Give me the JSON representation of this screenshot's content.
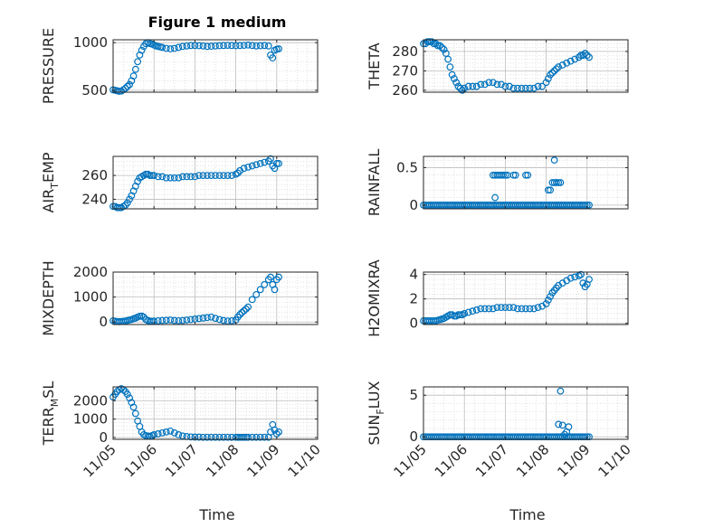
{
  "figure_title": "Figure 1 medium",
  "xlabel": "Time",
  "marker_color": "#0072BD",
  "chart_data": [
    {
      "type": "scatter",
      "ylabel_parts": [
        {
          "t": "PRESSURE"
        }
      ],
      "ylim": [
        480,
        1030
      ],
      "yticks": [
        {
          "v": 500,
          "label": "500"
        },
        {
          "v": 1000,
          "label": "1000"
        }
      ],
      "x": [
        0.0,
        0.05,
        0.1,
        0.15,
        0.2,
        0.25,
        0.3,
        0.35,
        0.4,
        0.45,
        0.5,
        0.55,
        0.6,
        0.65,
        0.7,
        0.75,
        0.8,
        0.85,
        0.9,
        0.95,
        1.0,
        1.05,
        1.1,
        1.15,
        1.2,
        1.3,
        1.4,
        1.5,
        1.6,
        1.7,
        1.8,
        1.9,
        2.0,
        2.1,
        2.2,
        2.3,
        2.4,
        2.5,
        2.6,
        2.7,
        2.8,
        2.9,
        3.0,
        3.1,
        3.2,
        3.3,
        3.4,
        3.5,
        3.6,
        3.7,
        3.8,
        3.85,
        3.9,
        3.95,
        4.0,
        4.05
      ],
      "y": [
        505,
        500,
        495,
        490,
        492,
        505,
        520,
        540,
        560,
        600,
        650,
        720,
        800,
        870,
        920,
        960,
        990,
        1000,
        990,
        985,
        975,
        965,
        960,
        955,
        950,
        940,
        935,
        940,
        950,
        960,
        965,
        970,
        970,
        968,
        965,
        960,
        962,
        965,
        968,
        970,
        972,
        970,
        968,
        970,
        972,
        975,
        970,
        965,
        968,
        970,
        965,
        870,
        840,
        920,
        930,
        935
      ]
    },
    {
      "type": "scatter",
      "ylabel_parts": [
        {
          "t": "THETA"
        }
      ],
      "ylim": [
        259,
        286
      ],
      "yticks": [
        {
          "v": 260,
          "label": "260"
        },
        {
          "v": 270,
          "label": "270"
        },
        {
          "v": 280,
          "label": "280"
        }
      ],
      "x": [
        0.0,
        0.05,
        0.1,
        0.15,
        0.2,
        0.25,
        0.3,
        0.35,
        0.4,
        0.45,
        0.5,
        0.55,
        0.6,
        0.65,
        0.7,
        0.75,
        0.8,
        0.85,
        0.9,
        0.95,
        1.0,
        1.1,
        1.2,
        1.3,
        1.4,
        1.5,
        1.6,
        1.7,
        1.8,
        1.9,
        2.0,
        2.1,
        2.2,
        2.3,
        2.4,
        2.5,
        2.6,
        2.7,
        2.8,
        2.9,
        3.0,
        3.05,
        3.1,
        3.15,
        3.2,
        3.25,
        3.3,
        3.4,
        3.5,
        3.6,
        3.7,
        3.8,
        3.85,
        3.9,
        3.95,
        4.0,
        4.05
      ],
      "y": [
        284,
        284,
        285,
        285,
        285,
        284,
        284,
        283,
        283,
        282,
        281,
        279,
        276,
        272,
        268,
        266,
        264,
        262,
        261,
        260,
        261,
        262,
        262,
        262,
        263,
        263,
        264,
        264,
        263,
        263,
        262,
        262,
        261,
        261,
        261,
        261,
        261,
        261,
        262,
        262,
        264,
        266,
        268,
        269,
        270,
        271,
        272,
        273,
        274,
        275,
        276,
        277,
        278,
        278,
        279,
        278,
        277
      ]
    },
    {
      "type": "scatter",
      "ylabel_parts": [
        {
          "t": "AIR"
        },
        {
          "t": "T",
          "sub": true
        },
        {
          "t": "EMP"
        }
      ],
      "ylim": [
        232,
        276
      ],
      "yticks": [
        {
          "v": 240,
          "label": "240"
        },
        {
          "v": 260,
          "label": "260"
        }
      ],
      "x": [
        0.0,
        0.05,
        0.1,
        0.15,
        0.2,
        0.25,
        0.3,
        0.35,
        0.4,
        0.45,
        0.5,
        0.55,
        0.6,
        0.65,
        0.7,
        0.75,
        0.8,
        0.85,
        0.9,
        0.95,
        1.0,
        1.1,
        1.2,
        1.3,
        1.4,
        1.5,
        1.6,
        1.7,
        1.8,
        1.9,
        2.0,
        2.1,
        2.2,
        2.3,
        2.4,
        2.5,
        2.6,
        2.7,
        2.8,
        2.9,
        3.0,
        3.05,
        3.1,
        3.2,
        3.3,
        3.4,
        3.5,
        3.6,
        3.7,
        3.8,
        3.85,
        3.9,
        3.95,
        4.0,
        4.05
      ],
      "y": [
        234,
        234,
        233,
        233,
        233,
        234,
        235,
        237,
        240,
        243,
        247,
        251,
        255,
        258,
        259,
        260,
        261,
        261,
        260,
        260,
        260,
        259,
        259,
        258,
        258,
        258,
        258,
        259,
        259,
        259,
        259,
        260,
        260,
        260,
        260,
        260,
        260,
        260,
        260,
        260,
        261,
        262,
        264,
        266,
        267,
        268,
        269,
        270,
        271,
        272,
        274,
        268,
        266,
        270,
        270
      ]
    },
    {
      "type": "scatter",
      "ylabel_parts": [
        {
          "t": "RAINFALL"
        }
      ],
      "ylim": [
        -0.05,
        0.65
      ],
      "yticks": [
        {
          "v": 0,
          "label": "0"
        },
        {
          "v": 0.5,
          "label": "0.5"
        }
      ],
      "x": [
        0.0,
        0.05,
        0.1,
        0.15,
        0.2,
        0.25,
        0.3,
        0.35,
        0.4,
        0.45,
        0.5,
        0.55,
        0.6,
        0.65,
        0.7,
        0.75,
        0.8,
        0.85,
        0.9,
        0.95,
        1.0,
        1.05,
        1.1,
        1.15,
        1.2,
        1.25,
        1.3,
        1.35,
        1.4,
        1.45,
        1.5,
        1.55,
        1.6,
        1.65,
        1.7,
        1.75,
        1.8,
        1.85,
        1.9,
        1.95,
        2.0,
        2.05,
        2.1,
        2.15,
        2.2,
        2.25,
        2.3,
        2.35,
        2.4,
        2.45,
        2.5,
        2.55,
        2.6,
        2.65,
        2.7,
        2.75,
        2.8,
        2.85,
        2.9,
        2.95,
        3.0,
        3.05,
        3.1,
        3.15,
        3.2,
        3.25,
        3.3,
        3.35,
        3.4,
        3.45,
        3.5,
        3.55,
        3.6,
        3.65,
        3.7,
        3.75,
        3.8,
        3.85,
        3.9,
        3.95,
        4.0,
        4.05,
        1.7,
        1.75,
        1.8,
        1.85,
        1.9,
        1.95,
        2.0,
        2.05,
        2.2,
        2.25,
        2.5,
        2.55,
        1.75,
        3.05,
        3.1,
        3.15,
        3.2,
        3.25,
        3.3,
        3.35,
        3.2,
        3.3
      ],
      "y": [
        0,
        0,
        0,
        0,
        0,
        0,
        0,
        0,
        0,
        0,
        0,
        0,
        0,
        0,
        0,
        0,
        0,
        0,
        0,
        0,
        0,
        0,
        0,
        0,
        0,
        0,
        0,
        0,
        0,
        0,
        0,
        0,
        0,
        0,
        0,
        0,
        0,
        0,
        0,
        0,
        0,
        0,
        0,
        0,
        0,
        0,
        0,
        0,
        0,
        0,
        0,
        0,
        0,
        0,
        0,
        0,
        0,
        0,
        0,
        0,
        0,
        0,
        0,
        0,
        0,
        0,
        0,
        0,
        0,
        0,
        0,
        0,
        0,
        0,
        0,
        0,
        0,
        0,
        0,
        0,
        0,
        0,
        0.4,
        0.4,
        0.4,
        0.4,
        0.4,
        0.4,
        0.4,
        0.4,
        0.4,
        0.4,
        0.4,
        0.4,
        0.1,
        0.2,
        0.2,
        0.3,
        0.3,
        0.3,
        0.3,
        0.3,
        0.6,
        0
      ]
    },
    {
      "type": "scatter",
      "ylabel_parts": [
        {
          "t": "MIXDEPTH"
        }
      ],
      "ylim": [
        -100,
        2000
      ],
      "yticks": [
        {
          "v": 0,
          "label": "0"
        },
        {
          "v": 1000,
          "label": "1000"
        },
        {
          "v": 2000,
          "label": "2000"
        }
      ],
      "x": [
        0.0,
        0.05,
        0.1,
        0.15,
        0.2,
        0.25,
        0.3,
        0.35,
        0.4,
        0.45,
        0.5,
        0.55,
        0.6,
        0.65,
        0.7,
        0.75,
        0.8,
        0.85,
        0.9,
        0.95,
        1.0,
        1.1,
        1.2,
        1.3,
        1.4,
        1.5,
        1.6,
        1.7,
        1.8,
        1.9,
        2.0,
        2.1,
        2.2,
        2.3,
        2.4,
        2.5,
        2.6,
        2.7,
        2.8,
        2.9,
        3.0,
        3.05,
        3.1,
        3.15,
        3.2,
        3.25,
        3.3,
        3.4,
        3.5,
        3.6,
        3.7,
        3.8,
        3.85,
        3.9,
        3.95,
        4.0,
        4.05
      ],
      "y": [
        50,
        30,
        20,
        15,
        20,
        30,
        40,
        60,
        80,
        100,
        130,
        160,
        200,
        230,
        240,
        200,
        100,
        60,
        40,
        30,
        40,
        50,
        60,
        70,
        80,
        60,
        50,
        60,
        80,
        100,
        120,
        140,
        160,
        180,
        200,
        150,
        100,
        60,
        40,
        50,
        80,
        200,
        300,
        380,
        450,
        520,
        600,
        900,
        1100,
        1300,
        1500,
        1700,
        1800,
        1500,
        1300,
        1700,
        1800
      ]
    },
    {
      "type": "scatter",
      "ylabel_parts": [
        {
          "t": "H2OMIXRA"
        }
      ],
      "ylim": [
        -0.1,
        4.2
      ],
      "yticks": [
        {
          "v": 0,
          "label": "0"
        },
        {
          "v": 2,
          "label": "2"
        },
        {
          "v": 4,
          "label": "4"
        }
      ],
      "x": [
        0.0,
        0.05,
        0.1,
        0.15,
        0.2,
        0.25,
        0.3,
        0.35,
        0.4,
        0.45,
        0.5,
        0.55,
        0.6,
        0.65,
        0.7,
        0.75,
        0.8,
        0.85,
        0.9,
        0.95,
        1.0,
        1.1,
        1.2,
        1.3,
        1.4,
        1.5,
        1.6,
        1.7,
        1.8,
        1.9,
        2.0,
        2.1,
        2.2,
        2.3,
        2.4,
        2.5,
        2.6,
        2.7,
        2.8,
        2.9,
        3.0,
        3.05,
        3.1,
        3.15,
        3.2,
        3.25,
        3.3,
        3.4,
        3.5,
        3.6,
        3.7,
        3.8,
        3.85,
        3.9,
        3.95,
        4.0,
        4.05
      ],
      "y": [
        0.2,
        0.2,
        0.2,
        0.2,
        0.2,
        0.2,
        0.2,
        0.25,
        0.3,
        0.35,
        0.4,
        0.5,
        0.6,
        0.7,
        0.7,
        0.6,
        0.6,
        0.7,
        0.7,
        0.7,
        0.8,
        0.9,
        1.0,
        1.1,
        1.2,
        1.2,
        1.2,
        1.2,
        1.3,
        1.3,
        1.3,
        1.3,
        1.3,
        1.2,
        1.2,
        1.2,
        1.2,
        1.2,
        1.3,
        1.4,
        1.6,
        1.9,
        2.2,
        2.5,
        2.7,
        2.9,
        3.1,
        3.3,
        3.5,
        3.7,
        3.8,
        3.9,
        4.0,
        3.3,
        3.0,
        3.2,
        3.6
      ]
    },
    {
      "type": "scatter",
      "ylabel_parts": [
        {
          "t": "TERR"
        },
        {
          "t": "M",
          "sub": true
        },
        {
          "t": "SL"
        }
      ],
      "ylim": [
        -100,
        2750
      ],
      "yticks": [
        {
          "v": 0,
          "label": "0"
        },
        {
          "v": 1000,
          "label": "1000"
        },
        {
          "v": 2000,
          "label": "2000"
        }
      ],
      "x": [
        0.0,
        0.05,
        0.1,
        0.15,
        0.2,
        0.25,
        0.3,
        0.35,
        0.4,
        0.45,
        0.5,
        0.55,
        0.6,
        0.65,
        0.7,
        0.75,
        0.8,
        0.85,
        0.9,
        0.95,
        1.0,
        1.1,
        1.2,
        1.3,
        1.4,
        1.5,
        1.6,
        1.7,
        1.8,
        1.9,
        2.0,
        2.1,
        2.2,
        2.3,
        2.4,
        2.5,
        2.6,
        2.7,
        2.8,
        2.9,
        3.0,
        3.05,
        3.1,
        3.15,
        3.2,
        3.25,
        3.3,
        3.4,
        3.5,
        3.6,
        3.7,
        3.8,
        3.85,
        3.9,
        3.95,
        4.0,
        4.05
      ],
      "y": [
        2200,
        2350,
        2500,
        2600,
        2650,
        2600,
        2500,
        2350,
        2150,
        1900,
        1650,
        1300,
        900,
        600,
        300,
        150,
        100,
        80,
        60,
        100,
        150,
        200,
        250,
        300,
        350,
        250,
        150,
        80,
        50,
        30,
        20,
        20,
        10,
        10,
        10,
        10,
        10,
        10,
        10,
        10,
        10,
        10,
        10,
        10,
        10,
        10,
        10,
        10,
        10,
        10,
        10,
        10,
        300,
        700,
        400,
        200,
        300
      ]
    },
    {
      "type": "scatter",
      "ylabel_parts": [
        {
          "t": "SUN"
        },
        {
          "t": "F",
          "sub": true
        },
        {
          "t": "LUX"
        }
      ],
      "ylim": [
        -0.3,
        6
      ],
      "yticks": [
        {
          "v": 0,
          "label": "0"
        },
        {
          "v": 5,
          "label": "5"
        }
      ],
      "x": [
        0.0,
        0.05,
        0.1,
        0.15,
        0.2,
        0.25,
        0.3,
        0.35,
        0.4,
        0.45,
        0.5,
        0.55,
        0.6,
        0.65,
        0.7,
        0.75,
        0.8,
        0.85,
        0.9,
        0.95,
        1.0,
        1.05,
        1.1,
        1.15,
        1.2,
        1.25,
        1.3,
        1.35,
        1.4,
        1.45,
        1.5,
        1.55,
        1.6,
        1.65,
        1.7,
        1.75,
        1.8,
        1.85,
        1.9,
        1.95,
        2.0,
        2.05,
        2.1,
        2.15,
        2.2,
        2.25,
        2.3,
        2.35,
        2.4,
        2.45,
        2.5,
        2.55,
        2.6,
        2.65,
        2.7,
        2.75,
        2.8,
        2.85,
        2.9,
        2.95,
        3.0,
        3.05,
        3.1,
        3.15,
        3.2,
        3.25,
        3.3,
        3.35,
        3.4,
        3.45,
        3.5,
        3.55,
        3.6,
        3.65,
        3.7,
        3.75,
        3.8,
        3.85,
        3.9,
        3.95,
        4.0,
        4.05,
        3.35,
        3.4,
        3.3,
        3.55,
        3.5,
        3.45
      ],
      "y": [
        0,
        0,
        0,
        0,
        0,
        0,
        0,
        0,
        0,
        0,
        0,
        0,
        0,
        0,
        0,
        0,
        0,
        0,
        0,
        0,
        0,
        0,
        0,
        0,
        0,
        0,
        0,
        0,
        0,
        0,
        0,
        0,
        0,
        0,
        0,
        0,
        0,
        0,
        0,
        0,
        0,
        0,
        0,
        0,
        0,
        0,
        0,
        0,
        0,
        0,
        0,
        0,
        0,
        0,
        0,
        0,
        0,
        0,
        0,
        0,
        0,
        0,
        0,
        0,
        0,
        0,
        0,
        0,
        0,
        0,
        0,
        0,
        0,
        0,
        0,
        0,
        0,
        0,
        0,
        0,
        0,
        0,
        5.5,
        1.4,
        1.5,
        1.2,
        0.6,
        0.3
      ]
    }
  ],
  "xtick_labels": [
    "11/05",
    "11/06",
    "11/07",
    "11/08",
    "11/09",
    "11/10"
  ]
}
